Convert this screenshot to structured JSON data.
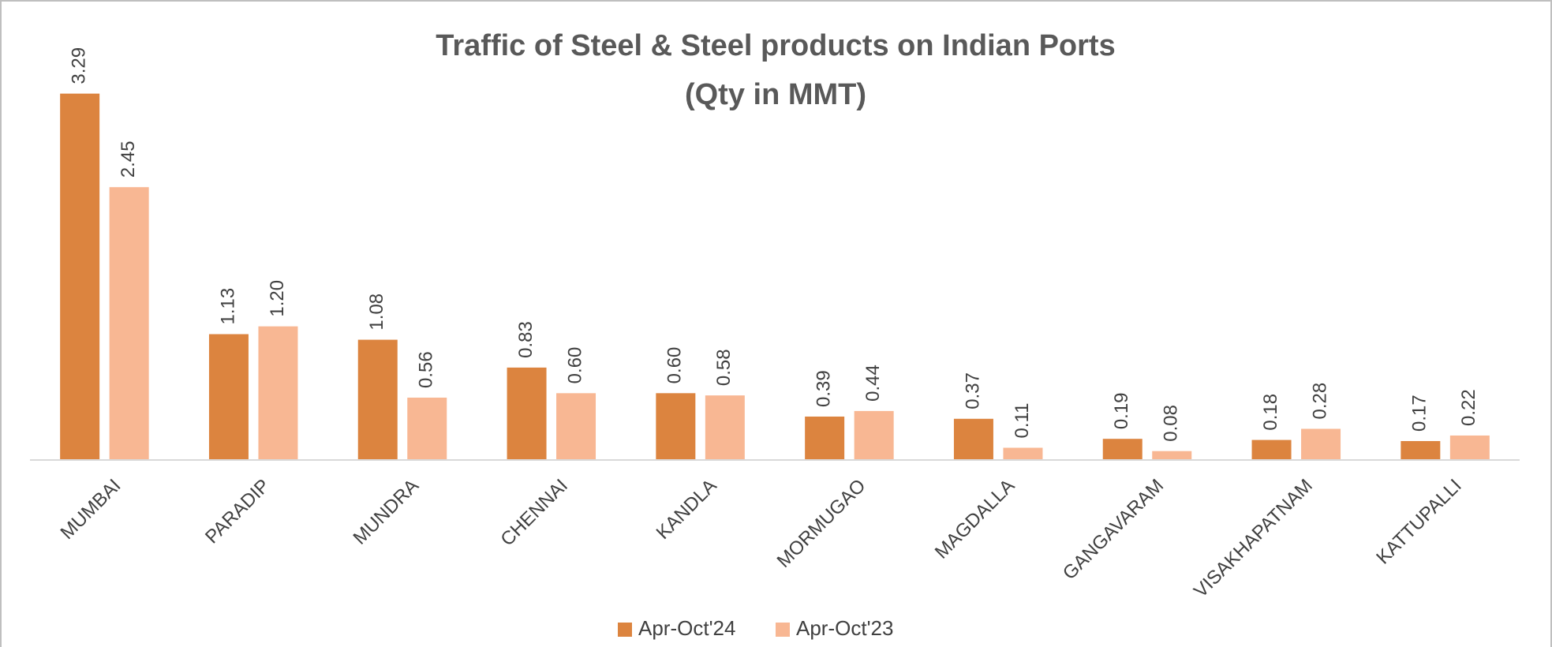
{
  "chart_data": {
    "type": "bar",
    "title": "Traffic of Steel & Steel products on Indian Ports",
    "subtitle": "(Qty in MMT)",
    "categories": [
      "MUMBAI",
      "PARADIP",
      "MUNDRA",
      "CHENNAI",
      "KANDLA",
      "MORMUGAO",
      "MAGDALLA",
      "GANGAVARAM",
      "VISAKHAPATNAM",
      "KATTUPALLI"
    ],
    "series": [
      {
        "name": "Apr-Oct'24",
        "color": "#dc843f",
        "values": [
          3.29,
          1.13,
          1.08,
          0.83,
          0.6,
          0.39,
          0.37,
          0.19,
          0.18,
          0.17
        ],
        "value_labels": [
          "3.29",
          "1.13",
          "1.08",
          "0.83",
          "0.60",
          "0.39",
          "0.37",
          "0.19",
          "0.18",
          "0.17"
        ]
      },
      {
        "name": "Apr-Oct'23",
        "color": "#f8b793",
        "values": [
          2.45,
          1.2,
          0.56,
          0.6,
          0.58,
          0.44,
          0.11,
          0.08,
          0.28,
          0.22
        ],
        "value_labels": [
          "2.45",
          "1.20",
          "0.56",
          "0.60",
          "0.58",
          "0.44",
          "0.11",
          "0.08",
          "0.28",
          "0.22"
        ]
      }
    ],
    "ylim": [
      0,
      3.5
    ],
    "legend": "bottom"
  }
}
